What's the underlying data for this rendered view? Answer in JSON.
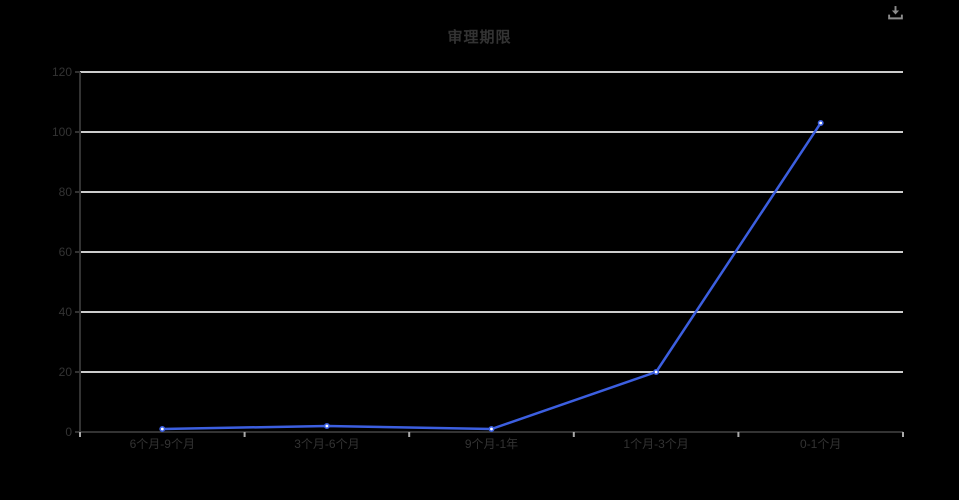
{
  "page": {
    "background": "#000000"
  },
  "toolbox": {
    "icon": "download-icon",
    "icon_color": "#8c8c8c",
    "action": "save-as-image"
  },
  "chart_data": {
    "type": "line",
    "title": "审理期限",
    "categories": [
      "6个月-9个月",
      "3个月-6个月",
      "9个月-1年",
      "1个月-3个月",
      "0-1个月"
    ],
    "values": [
      1,
      2,
      1,
      20,
      103
    ],
    "xlabel": "",
    "ylabel": "",
    "ylim": [
      0,
      120
    ],
    "y_ticks": [
      0,
      20,
      40,
      60,
      80,
      100,
      120
    ],
    "grid": true,
    "legend_position": "none",
    "colors": {
      "line": "#3c5fe0",
      "marker_fill": "#ffffff",
      "gridline": "#cccccc",
      "axis": "#333333",
      "x_tick": "#aaaaaa",
      "y_tick": "#333333",
      "label": "#333333",
      "title": "#333333"
    }
  }
}
